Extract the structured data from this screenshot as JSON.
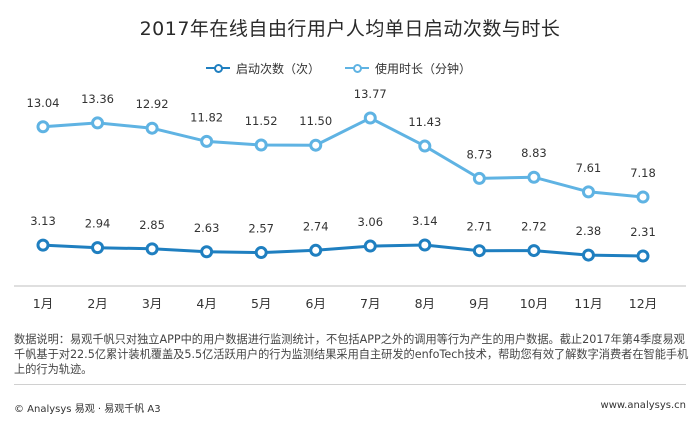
{
  "chart_data": {
    "type": "line",
    "title": "2017年在线自由行用户人均单日启动次数与时长",
    "categories": [
      "1月",
      "2月",
      "3月",
      "4月",
      "5月",
      "6月",
      "7月",
      "8月",
      "9月",
      "10月",
      "11月",
      "12月"
    ],
    "series": [
      {
        "name": "启动次数（次）",
        "color": "#1f7fc0",
        "values": [
          3.13,
          2.94,
          2.85,
          2.63,
          2.57,
          2.74,
          3.06,
          3.14,
          2.71,
          2.72,
          2.38,
          2.31
        ]
      },
      {
        "name": "使用时长（分钟）",
        "color": "#5fb3e3",
        "values": [
          13.04,
          13.36,
          12.92,
          11.82,
          11.52,
          11.5,
          13.77,
          11.43,
          8.73,
          8.83,
          7.61,
          7.18
        ]
      }
    ],
    "value_labels": [
      [
        "3.13",
        "2.94",
        "2.85",
        "2.63",
        "2.57",
        "2.74",
        "3.06",
        "3.14",
        "2.71",
        "2.72",
        "2.38",
        "2.31"
      ],
      [
        "13.04",
        "13.36",
        "12.92",
        "11.82",
        "11.52",
        "11.50",
        "13.77",
        "11.43",
        "8.73",
        "8.83",
        "7.61",
        "7.18"
      ]
    ],
    "xlabel": "",
    "ylabel": "",
    "grid": false,
    "legend_position": "top-center"
  },
  "note": "数据说明：易观千帆只对独立APP中的用户数据进行监测统计，不包括APP之外的调用等行为产生的用户数据。截止2017年第4季度易观千帆基于对22.5亿累计装机覆盖及5.5亿活跃用户的行为监测结果采用自主研发的enfoTech技术，帮助您有效了解数字消费者在智能手机上的行为轨迹。",
  "footer": {
    "left": "© Analysys 易观 · 易观千帆 A3",
    "right": "www.analysys.cn"
  }
}
